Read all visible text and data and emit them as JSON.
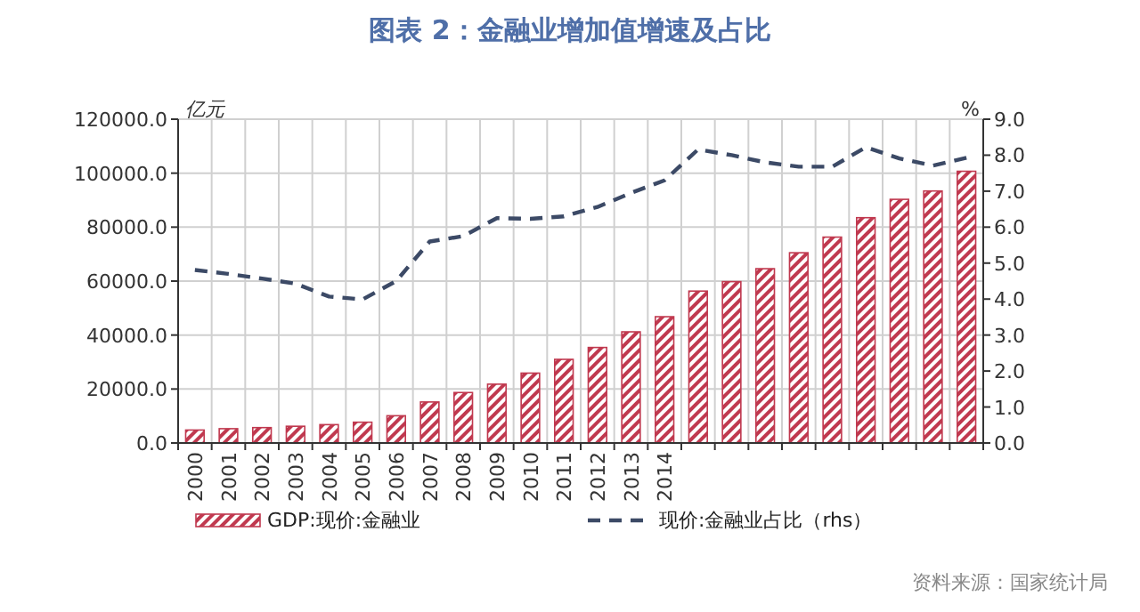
{
  "chart_data": {
    "type": "bar",
    "title": "图表 2：金融业增加值增速及占比",
    "ylabel": "亿元",
    "y2label": "%",
    "categories": [
      "2000",
      "2001",
      "2002",
      "2003",
      "2004",
      "2005",
      "2006",
      "2007",
      "2008",
      "2009",
      "2010",
      "2011",
      "2012",
      "2013",
      "2014",
      null,
      null,
      null,
      null,
      null,
      null,
      null,
      null,
      null
    ],
    "series": [
      {
        "name": "GDP:现价:金融业",
        "color": "#c0394f",
        "values": [
          4800,
          5300,
          5700,
          6200,
          6800,
          7700,
          10100,
          15200,
          18700,
          21800,
          25900,
          31000,
          35400,
          41200,
          46800,
          56300,
          59800,
          64600,
          70500,
          76300,
          83500,
          90300,
          93400,
          100700
        ]
      },
      {
        "name": "现价:金融业占比（rhs）",
        "type": "line",
        "axis": "y2",
        "color": "#3c4a66",
        "line_style": "dashed",
        "values": [
          4.81,
          4.7,
          4.57,
          4.43,
          4.07,
          3.99,
          4.5,
          5.6,
          5.75,
          6.25,
          6.23,
          6.3,
          6.56,
          6.95,
          7.3,
          8.16,
          8.0,
          7.8,
          7.68,
          7.68,
          8.22,
          7.91,
          7.71,
          7.93
        ]
      }
    ],
    "ylim": [
      0,
      120000
    ],
    "yticks": [
      {
        "value": 0,
        "label": "0.0"
      },
      {
        "value": 20000,
        "label": "20000.0"
      },
      {
        "value": 40000,
        "label": "40000.0"
      },
      {
        "value": 60000,
        "label": "60000.0"
      },
      {
        "value": 80000,
        "label": "80000.0"
      },
      {
        "value": 100000,
        "label": "100000.0"
      },
      {
        "value": 120000,
        "label": "120000.0"
      }
    ],
    "y2lim": [
      0,
      9
    ],
    "y2ticks": [
      {
        "value": 0,
        "label": "0.0"
      },
      {
        "value": 1,
        "label": "1.0"
      },
      {
        "value": 2,
        "label": "2.0"
      },
      {
        "value": 3,
        "label": "3.0"
      },
      {
        "value": 4,
        "label": "4.0"
      },
      {
        "value": 5,
        "label": "5.0"
      },
      {
        "value": 6,
        "label": "6.0"
      },
      {
        "value": 7,
        "label": "7.0"
      },
      {
        "value": 8,
        "label": "8.0"
      },
      {
        "value": 9,
        "label": "9.0"
      }
    ],
    "grid": true,
    "legend": "bottom",
    "annotations": [
      "资料来源：国家统计局"
    ]
  }
}
